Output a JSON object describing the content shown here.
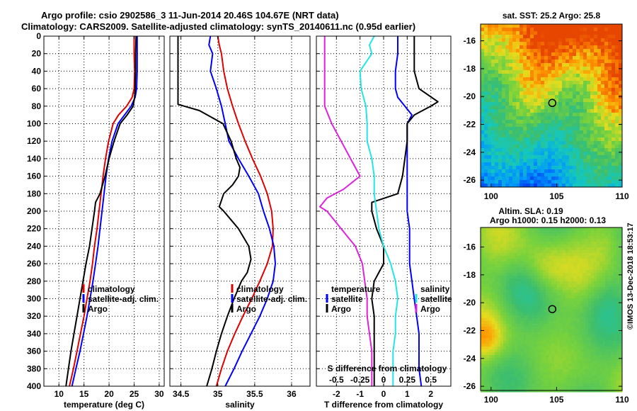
{
  "header": {
    "title_line1": "Argo profile: csio 2902586_3 11-Jun-2014 20.46S 104.67E (NRT data)",
    "title_line2": "Climatology: CARS2009. Satellite-adjusted climatology: synTS_20140611.nc (0.95d earlier)"
  },
  "side_label": "©IMOS 13-Dec-2018 18:53:17",
  "colors": {
    "climatology": "#e00000",
    "satellite": "#0000ff",
    "argo": "#000000",
    "cyan": "#22e5e5",
    "magenta": "#dd22dd"
  },
  "chart_data": [
    {
      "id": "temperature",
      "type": "line",
      "xlabel": "temperature (deg C)",
      "ylabel": "",
      "xlim": [
        7,
        31
      ],
      "ylim": [
        0,
        400
      ],
      "y_reversed": true,
      "xticks": [
        10,
        15,
        20,
        25,
        30
      ],
      "xtick_labels": [
        "10",
        "15",
        "20",
        "25",
        "30"
      ],
      "yticks": [
        0,
        20,
        40,
        60,
        80,
        100,
        120,
        140,
        160,
        180,
        200,
        220,
        240,
        260,
        280,
        300,
        320,
        340,
        360,
        380,
        400
      ],
      "ytick_labels": [
        "0",
        "20",
        "40",
        "60",
        "80",
        "100",
        "120",
        "140",
        "160",
        "180",
        "200",
        "220",
        "240",
        "260",
        "280",
        "300",
        "320",
        "340",
        "360",
        "380",
        "400"
      ],
      "legend": [
        "climatology",
        "satellite-adj. clim.",
        "Argo"
      ],
      "series": [
        {
          "name": "climatology",
          "color": "climatology",
          "depth": [
            0,
            20,
            40,
            60,
            70,
            80,
            90,
            100,
            120,
            140,
            160,
            180,
            200,
            220,
            240,
            260,
            280,
            300,
            320,
            340,
            360,
            380,
            400
          ],
          "values": [
            25.0,
            25.0,
            25.1,
            25.0,
            24.6,
            23.5,
            21.9,
            20.8,
            19.9,
            19.3,
            18.8,
            18.4,
            18.0,
            17.6,
            17.1,
            16.7,
            16.2,
            15.6,
            15.0,
            14.3,
            13.6,
            12.9,
            12.1
          ]
        },
        {
          "name": "satellite-adj. clim.",
          "color": "satellite",
          "depth": [
            0,
            20,
            40,
            60,
            70,
            80,
            90,
            100,
            120,
            140,
            160,
            180,
            200,
            220,
            240,
            260,
            280,
            300,
            320,
            340,
            360,
            380,
            400
          ],
          "values": [
            25.6,
            25.6,
            25.6,
            25.5,
            25.2,
            24.4,
            23.1,
            21.8,
            20.6,
            19.9,
            19.4,
            19.0,
            18.6,
            18.2,
            17.8,
            17.3,
            16.8,
            16.2,
            15.6,
            14.9,
            14.2,
            13.4,
            12.6
          ]
        },
        {
          "name": "Argo",
          "color": "argo",
          "depth": [
            0,
            20,
            40,
            60,
            70,
            80,
            90,
            100,
            120,
            140,
            160,
            180,
            190,
            200,
            220,
            240,
            260,
            280,
            300,
            320,
            340,
            360,
            380,
            400
          ],
          "values": [
            25.4,
            25.3,
            25.3,
            25.2,
            25.1,
            24.8,
            23.6,
            22.2,
            21.0,
            20.0,
            19.2,
            18.2,
            17.3,
            17.1,
            16.6,
            16.1,
            15.4,
            14.8,
            14.2,
            13.6,
            13.0,
            12.4,
            11.9,
            11.4
          ]
        }
      ]
    },
    {
      "id": "salinity",
      "type": "line",
      "xlabel": "salinity",
      "ylabel": "",
      "xlim": [
        34.35,
        36.25
      ],
      "ylim": [
        0,
        400
      ],
      "y_reversed": true,
      "xticks": [
        34.5,
        35,
        35.5,
        36
      ],
      "xtick_labels": [
        "34.5",
        "35",
        "35.5",
        "36"
      ],
      "legend": [
        "climatology",
        "satellite-adj. clim.",
        "Argo"
      ],
      "series": [
        {
          "name": "climatology",
          "color": "climatology",
          "depth": [
            0,
            10,
            20,
            40,
            60,
            80,
            100,
            120,
            140,
            160,
            180,
            200,
            220,
            240,
            260,
            280,
            300,
            320,
            340,
            360,
            380,
            400
          ],
          "values": [
            35.0,
            35.02,
            35.05,
            35.08,
            35.13,
            35.2,
            35.28,
            35.37,
            35.47,
            35.58,
            35.67,
            35.73,
            35.75,
            35.74,
            35.67,
            35.57,
            35.46,
            35.34,
            35.23,
            35.13,
            35.05,
            34.98
          ]
        },
        {
          "name": "satellite-adj. clim.",
          "color": "satellite",
          "depth": [
            0,
            10,
            20,
            40,
            60,
            80,
            100,
            120,
            140,
            160,
            180,
            200,
            220,
            240,
            260,
            280,
            300,
            320,
            340,
            360,
            380,
            400
          ],
          "values": [
            34.9,
            34.88,
            34.93,
            34.9,
            34.98,
            35.05,
            35.1,
            35.15,
            35.28,
            35.42,
            35.55,
            35.62,
            35.7,
            35.76,
            35.78,
            35.75,
            35.67,
            35.57,
            35.45,
            35.33,
            35.22,
            35.1
          ]
        },
        {
          "name": "Argo",
          "color": "argo",
          "depth": [
            0,
            60,
            78,
            85,
            100,
            120,
            140,
            150,
            160,
            170,
            180,
            195,
            200,
            220,
            240,
            255,
            270,
            280,
            300,
            320,
            340,
            360,
            380,
            400
          ],
          "values": [
            34.46,
            34.46,
            34.46,
            34.75,
            35.07,
            35.18,
            35.25,
            35.3,
            35.28,
            35.2,
            35.08,
            35.02,
            35.08,
            35.28,
            35.42,
            35.45,
            35.4,
            35.32,
            35.22,
            35.13,
            35.05,
            34.98,
            34.92,
            34.85
          ]
        }
      ]
    },
    {
      "id": "difference",
      "type": "line",
      "xlabel": "T difference from climatology",
      "xlabel_top": "S difference from climatology",
      "xlim": [
        -2.85,
        2.85
      ],
      "ylim": [
        0,
        400
      ],
      "y_reversed": true,
      "xticks": [
        -2,
        -1,
        0,
        1,
        2
      ],
      "xtick_labels": [
        "-2",
        "-1",
        "0",
        "1",
        "2"
      ],
      "top_ticks": [
        -2,
        -1,
        0,
        1,
        2
      ],
      "top_tick_labels": [
        "-0.5",
        "-0.25",
        "0",
        "0.25",
        "0.5"
      ],
      "legend_left_title": "temperature",
      "legend_right_title": "salinity",
      "legend_left": [
        "satellite",
        "Argo"
      ],
      "legend_right": [
        "satellite",
        "Argo"
      ],
      "series": [
        {
          "name": "T satellite",
          "color": "satellite",
          "depth": [
            0,
            20,
            40,
            60,
            70,
            80,
            90,
            100,
            120,
            140,
            160,
            180,
            200,
            220,
            240,
            260,
            280,
            300,
            320,
            340,
            360,
            380,
            400
          ],
          "values": [
            0.6,
            0.6,
            0.5,
            0.5,
            0.6,
            0.9,
            1.2,
            1.0,
            1.0,
            1.0,
            1.0,
            1.0,
            1.0,
            1.1,
            1.1,
            1.1,
            1.2,
            1.3,
            1.4,
            1.5,
            1.5,
            1.5,
            1.6
          ]
        },
        {
          "name": "T Argo",
          "color": "argo",
          "depth": [
            0,
            20,
            40,
            60,
            75,
            80,
            90,
            100,
            120,
            140,
            160,
            180,
            190,
            200,
            220,
            240,
            260,
            270,
            280,
            300,
            320,
            340,
            360,
            380,
            400
          ],
          "values": [
            1.3,
            1.3,
            1.3,
            1.5,
            2.3,
            2.0,
            1.3,
            1.0,
            1.0,
            0.9,
            0.8,
            0.6,
            -0.5,
            -0.5,
            -0.3,
            0.0,
            0.0,
            -0.2,
            -0.4,
            -0.5,
            -0.4,
            -0.4,
            -0.4,
            -0.4,
            -0.4
          ]
        },
        {
          "name": "S satellite",
          "color": "cyan",
          "depth": [
            0,
            10,
            20,
            40,
            60,
            80,
            100,
            120,
            140,
            160,
            180,
            200,
            220,
            240,
            260,
            280,
            300,
            320,
            340,
            360,
            380,
            400
          ],
          "values": [
            -0.4,
            -0.6,
            -0.5,
            -1.0,
            -0.95,
            -0.75,
            -0.7,
            -0.7,
            -0.5,
            -0.4,
            -0.4,
            -0.3,
            -0.2,
            0.0,
            0.3,
            0.5,
            0.6,
            0.5,
            0.5,
            0.4,
            0.4,
            0.4
          ]
        },
        {
          "name": "S Argo",
          "color": "magenta",
          "depth": [
            0,
            40,
            80,
            100,
            120,
            140,
            160,
            175,
            185,
            195,
            200,
            220,
            240,
            260,
            280,
            300,
            320,
            340,
            360,
            380,
            400
          ],
          "values": [
            -2.5,
            -2.5,
            -2.5,
            -2.2,
            -1.8,
            -1.4,
            -1.0,
            -1.7,
            -2.4,
            -2.7,
            -2.4,
            -1.8,
            -1.2,
            -0.9,
            -0.8,
            -0.7,
            -0.7,
            -0.6,
            -0.5,
            -0.5,
            -0.5
          ]
        }
      ]
    },
    {
      "id": "sst_map",
      "type": "heatmap",
      "title": "sat. SST: 25.2  Argo: 25.8",
      "xlim": [
        99.2,
        110
      ],
      "ylim": [
        -26.5,
        -14.8
      ],
      "xticks": [
        100,
        105,
        110
      ],
      "xtick_labels": [
        "100",
        "105",
        "110"
      ],
      "yticks": [
        -16,
        -18,
        -20,
        -22,
        -24,
        -26
      ],
      "ytick_labels": [
        "-16",
        "-18",
        "-20",
        "-22",
        "-24",
        "-26"
      ],
      "marker": {
        "lon": 104.67,
        "lat": -20.46
      }
    },
    {
      "id": "sla_map",
      "type": "heatmap",
      "title_line1": "Altim. SLA: 0.19",
      "title_line2": "Argo h1000: 0.15 h2000: 0.13",
      "xlim": [
        99.2,
        110
      ],
      "ylim": [
        -26.3,
        -14.6
      ],
      "xticks": [
        100,
        105,
        110
      ],
      "xtick_labels": [
        "100",
        "105",
        "110"
      ],
      "yticks": [
        -16,
        -18,
        -20,
        -22,
        -24,
        -26
      ],
      "ytick_labels": [
        "-16",
        "-18",
        "-20",
        "-22",
        "-24",
        "-26"
      ],
      "marker": {
        "lon": 104.67,
        "lat": -20.46
      }
    }
  ]
}
